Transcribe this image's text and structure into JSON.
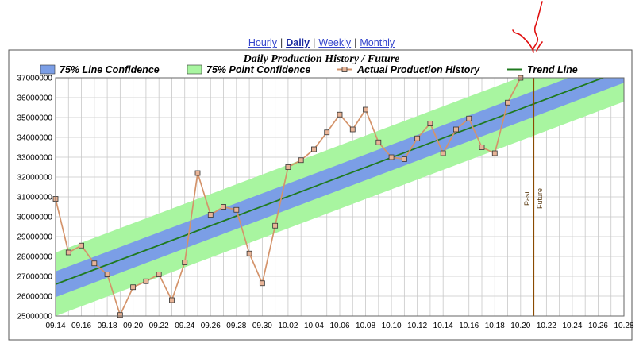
{
  "nav": {
    "hourly": "Hourly",
    "daily": "Daily",
    "weekly": "Weekly",
    "monthly": "Monthly",
    "separator": "|",
    "active": "daily"
  },
  "chart_data": {
    "type": "line",
    "title": "Daily Production History / Future",
    "legend": [
      {
        "label": "75% Line Confidence",
        "color": "#7b9ee6",
        "kind": "swatch"
      },
      {
        "label": "75% Point Confidence",
        "color": "#a8f5a0",
        "kind": "swatch"
      },
      {
        "label": "Actual Production History",
        "color": "#d4936a",
        "kind": "line-marker"
      },
      {
        "label": "Trend Line",
        "color": "#1f7a1f",
        "kind": "line"
      }
    ],
    "legend_position": "top",
    "grid": true,
    "xlabel": "",
    "ylabel": "",
    "x_ticks": [
      "09.14",
      "09.16",
      "09.18",
      "09.20",
      "09.22",
      "09.24",
      "09.26",
      "09.28",
      "09.30",
      "10.02",
      "10.04",
      "10.06",
      "10.08",
      "10.10",
      "10.12",
      "10.14",
      "10.16",
      "10.18",
      "10.20",
      "10.22",
      "10.24",
      "10.26",
      "10.28"
    ],
    "x_range": [
      0,
      44
    ],
    "ylim": [
      25000000,
      37000000
    ],
    "y_ticks": [
      25000000,
      26000000,
      27000000,
      28000000,
      29000000,
      30000000,
      31000000,
      32000000,
      33000000,
      34000000,
      35000000,
      36000000,
      37000000
    ],
    "series": [
      {
        "name": "Actual Production History",
        "x": [
          "09.14",
          "09.15",
          "09.16",
          "09.17",
          "09.18",
          "09.19",
          "09.20",
          "09.21",
          "09.22",
          "09.23",
          "09.24",
          "09.25",
          "09.26",
          "09.27",
          "09.28",
          "09.29",
          "09.30",
          "10.01",
          "10.02",
          "10.03",
          "10.04",
          "10.05",
          "10.06",
          "10.07",
          "10.08",
          "10.09",
          "10.10",
          "10.11",
          "10.12",
          "10.13",
          "10.14",
          "10.15",
          "10.16",
          "10.17",
          "10.18",
          "10.19",
          "10.20"
        ],
        "values": [
          30900000,
          28200000,
          28550000,
          27650000,
          27100000,
          25050000,
          26450000,
          26750000,
          27100000,
          25800000,
          27700000,
          32200000,
          30100000,
          30500000,
          30350000,
          28150000,
          26650000,
          29550000,
          32500000,
          32850000,
          33400000,
          34250000,
          35150000,
          34400000,
          35400000,
          33750000,
          33000000,
          32900000,
          33950000,
          34700000,
          33200000,
          34400000,
          34950000,
          33500000,
          33200000,
          35750000,
          37000000
        ],
        "color": "#d4936a"
      }
    ],
    "trend_line": {
      "name": "Trend Line",
      "x_start": "09.14",
      "y_start": 26600000,
      "x_end": "10.28",
      "y_end": 37400000
    },
    "line_confidence_halfwidth": 650000,
    "point_confidence_halfwidth": 1600000,
    "past_future_divider": {
      "x": "10.21",
      "past_label": "Past",
      "future_label": "Future",
      "color": "#8a4a00"
    }
  }
}
